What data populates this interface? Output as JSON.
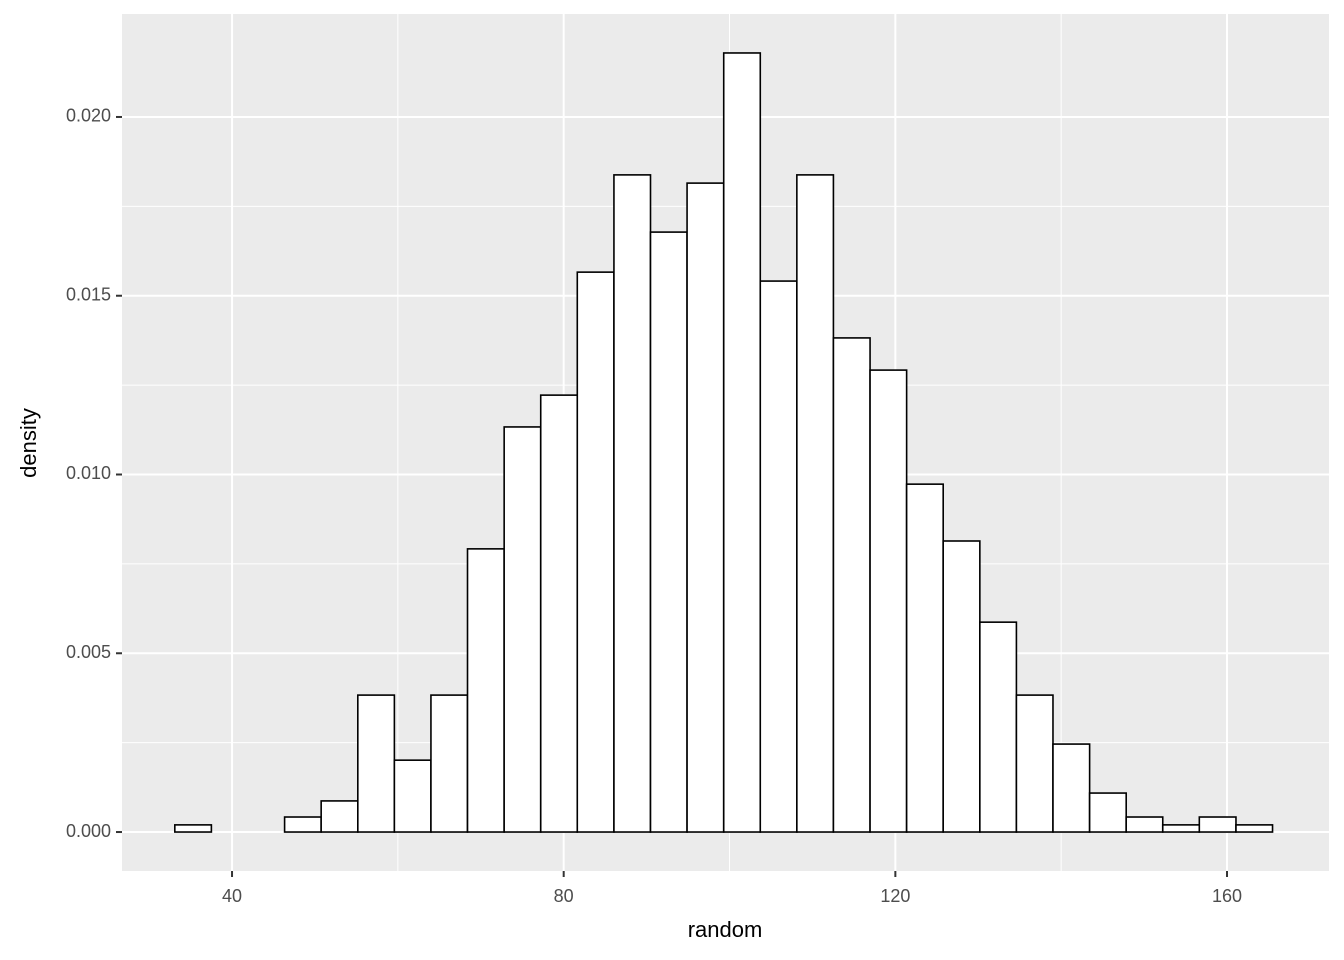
{
  "chart_data": {
    "type": "histogram",
    "x_label": "random",
    "y_label": "density",
    "bins": [
      33.1,
      37.51,
      41.93,
      46.34,
      50.75,
      55.17,
      59.58,
      63.99,
      68.4,
      72.82,
      77.23,
      81.64,
      86.06,
      90.47,
      94.88,
      99.3,
      103.71,
      108.12,
      112.53,
      116.95,
      121.36,
      125.77,
      130.19,
      134.6,
      139.01,
      143.43,
      147.84,
      152.25,
      156.66,
      161.08,
      165.49
    ],
    "values": [
      0.0002,
      0,
      0,
      0.00042,
      0.00087,
      0.00383,
      0.00201,
      0.00383,
      0.00792,
      0.01133,
      0.01222,
      0.01566,
      0.01838,
      0.01678,
      0.01815,
      0.02179,
      0.01541,
      0.01838,
      0.01382,
      0.01292,
      0.00973,
      0.00814,
      0.00587,
      0.00383,
      0.00246,
      0.00109,
      0.00042,
      0.0002,
      0.00042,
      0.0002
    ],
    "color": "#ffffff",
    "edge_color": "#000000",
    "xlim": [
      26.73,
      172.3
    ],
    "ylim": [
      -0.00109,
      0.02288
    ],
    "xticks": [
      40,
      80,
      120,
      160
    ],
    "yticks": [
      {
        "value": 0,
        "label": "0.000"
      },
      {
        "value": 0.005,
        "label": "0.005"
      },
      {
        "value": 0.01,
        "label": "0.010"
      },
      {
        "value": 0.015,
        "label": "0.015"
      },
      {
        "value": 0.02,
        "label": "0.020"
      }
    ],
    "grid": true,
    "panel_color": "#ebebeb"
  }
}
